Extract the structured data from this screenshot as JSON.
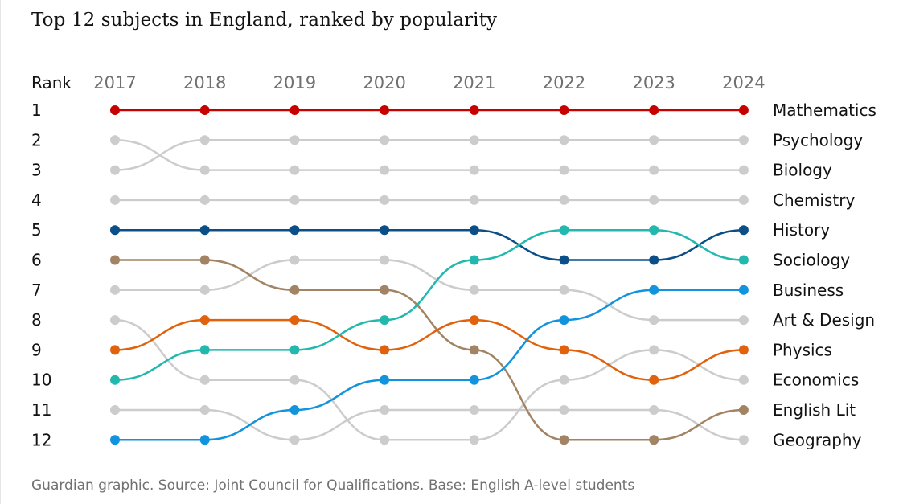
{
  "chart_data": {
    "type": "bump",
    "title": "Top 12 subjects in England, ranked by popularity",
    "rank_header": "Rank",
    "ranks": [
      "1",
      "2",
      "3",
      "4",
      "5",
      "6",
      "7",
      "8",
      "9",
      "10",
      "11",
      "12"
    ],
    "years": [
      "2017",
      "2018",
      "2019",
      "2020",
      "2021",
      "2022",
      "2023",
      "2024"
    ],
    "series": [
      {
        "name": "Mathematics",
        "color": "#c70000",
        "highlight": true,
        "ranks": [
          1,
          1,
          1,
          1,
          1,
          1,
          1,
          1
        ]
      },
      {
        "name": "History",
        "color": "#0b4f88",
        "highlight": true,
        "ranks": [
          5,
          5,
          5,
          5,
          5,
          6,
          6,
          5
        ]
      },
      {
        "name": "English Lit",
        "color": "#a28464",
        "highlight": true,
        "ranks": [
          6,
          6,
          7,
          7,
          9,
          12,
          12,
          11
        ]
      },
      {
        "name": "Physics",
        "color": "#e0620c",
        "highlight": true,
        "ranks": [
          9,
          8,
          8,
          9,
          8,
          9,
          10,
          9
        ]
      },
      {
        "name": "Sociology",
        "color": "#22b8ad",
        "highlight": true,
        "ranks": [
          10,
          9,
          9,
          8,
          6,
          5,
          5,
          6
        ]
      },
      {
        "name": "Business",
        "color": "#1293de",
        "highlight": true,
        "ranks": [
          12,
          12,
          11,
          10,
          10,
          8,
          7,
          7
        ]
      },
      {
        "name": "Psychology",
        "color": "#cccccc",
        "highlight": false,
        "ranks": [
          3,
          2,
          2,
          2,
          2,
          2,
          2,
          2
        ]
      },
      {
        "name": "Biology",
        "color": "#cccccc",
        "highlight": false,
        "ranks": [
          2,
          3,
          3,
          3,
          3,
          3,
          3,
          3
        ]
      },
      {
        "name": "Chemistry",
        "color": "#cccccc",
        "highlight": false,
        "ranks": [
          4,
          4,
          4,
          4,
          4,
          4,
          4,
          4
        ]
      },
      {
        "name": "Art & Design",
        "color": "#cccccc",
        "highlight": false,
        "ranks": [
          7,
          7,
          6,
          6,
          7,
          7,
          8,
          8
        ]
      },
      {
        "name": "Economics",
        "color": "#cccccc",
        "highlight": false,
        "ranks": [
          8,
          10,
          10,
          12,
          12,
          10,
          9,
          10
        ]
      },
      {
        "name": "Geography",
        "color": "#cccccc",
        "highlight": false,
        "ranks": [
          11,
          11,
          12,
          11,
          11,
          11,
          11,
          12
        ]
      }
    ],
    "source": "Guardian graphic. Source: Joint Council for Qualifications. Base: English A-level students"
  }
}
